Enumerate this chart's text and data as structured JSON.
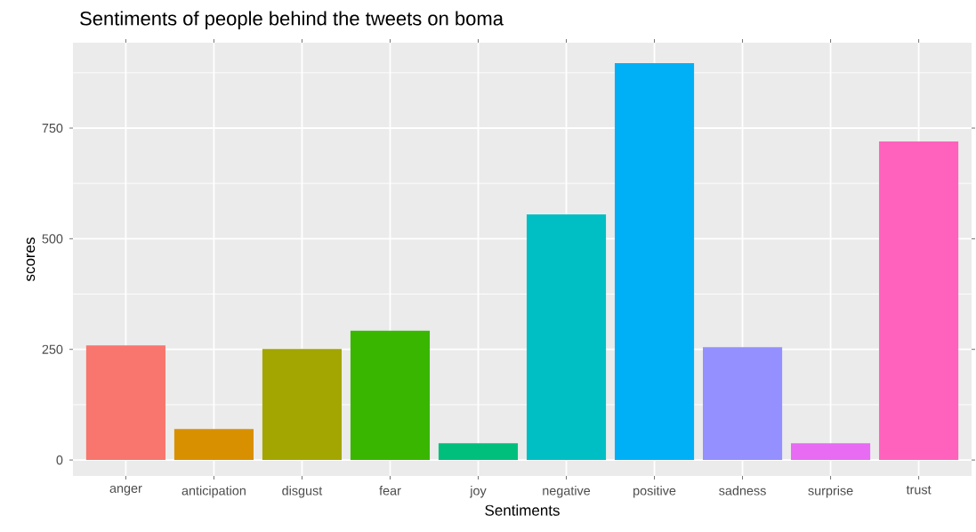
{
  "chart_data": {
    "type": "bar",
    "title": "Sentiments of people behind the tweets on boma",
    "xlabel": "Sentiments",
    "ylabel": "scores",
    "categories": [
      "anger",
      "anticipation",
      "disgust",
      "fear",
      "joy",
      "negative",
      "positive",
      "sadness",
      "surprise",
      "trust"
    ],
    "values": [
      259,
      70,
      251,
      292,
      38,
      555,
      897,
      255,
      38,
      720
    ],
    "colors": [
      "#F8766D",
      "#D89000",
      "#A3A500",
      "#39B600",
      "#00BF7D",
      "#00BFC4",
      "#00B0F6",
      "#9590FF",
      "#E76BF3",
      "#FF62BC"
    ],
    "ylim": [
      -36,
      943
    ],
    "yticks": [
      0,
      250,
      500,
      750
    ],
    "grid": true
  }
}
